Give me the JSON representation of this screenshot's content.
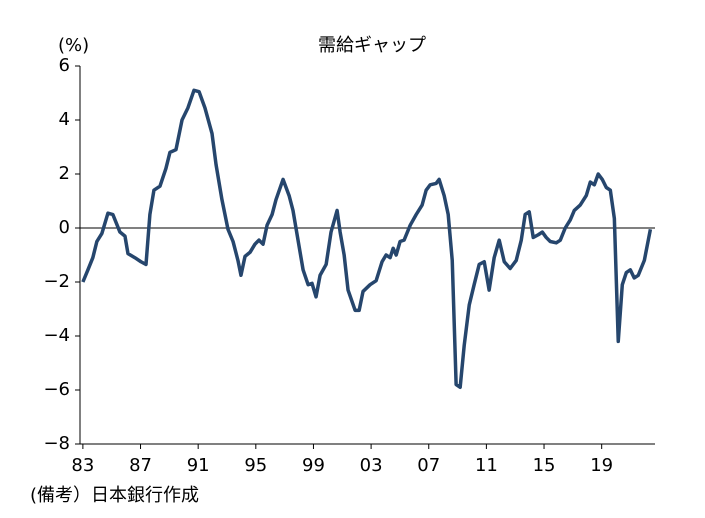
{
  "chart_data": {
    "type": "line",
    "title": "需給ギャップ",
    "y_unit": "(%)",
    "note": "(備考）日本銀行作成",
    "color": "#26466d",
    "x": [
      1983.0,
      1983.35,
      1983.69,
      1983.97,
      1984.32,
      1984.74,
      1985.08,
      1985.57,
      1985.92,
      1986.13,
      1986.61,
      1987.03,
      1987.38,
      1987.65,
      1987.93,
      1988.35,
      1988.76,
      1989.04,
      1989.46,
      1989.88,
      1990.29,
      1990.71,
      1991.06,
      1991.47,
      1991.96,
      1992.24,
      1992.65,
      1993.07,
      1993.42,
      1993.76,
      1993.97,
      1994.25,
      1994.6,
      1994.94,
      1995.22,
      1995.5,
      1995.78,
      1996.13,
      1996.4,
      1996.89,
      1997.31,
      1997.58,
      1997.93,
      1998.28,
      1998.63,
      1998.9,
      1999.18,
      1999.46,
      1999.88,
      2000.22,
      2000.64,
      2000.85,
      2001.13,
      2001.4,
      2001.89,
      2002.17,
      2002.44,
      2002.93,
      2003.35,
      2003.76,
      2004.04,
      2004.32,
      2004.53,
      2004.74,
      2005.01,
      2005.29,
      2005.71,
      2006.13,
      2006.54,
      2006.82,
      2007.1,
      2007.51,
      2007.72,
      2008.07,
      2008.35,
      2008.63,
      2008.9,
      2009.18,
      2009.46,
      2009.81,
      2010.15,
      2010.5,
      2010.85,
      2011.19,
      2011.54,
      2011.89,
      2012.24,
      2012.65,
      2013.07,
      2013.42,
      2013.69,
      2013.97,
      2014.25,
      2014.6,
      2014.88,
      2015.15,
      2015.43,
      2015.85,
      2016.13,
      2016.47,
      2016.82,
      2017.1,
      2017.51,
      2017.93,
      2018.21,
      2018.49,
      2018.76,
      2019.04,
      2019.32,
      2019.6,
      2019.88,
      2020.15,
      2020.43,
      2020.71,
      2020.99,
      2021.26,
      2021.54,
      2021.96,
      2022.38
    ],
    "values": [
      -2.0,
      -1.55,
      -1.1,
      -0.5,
      -0.2,
      0.55,
      0.5,
      -0.15,
      -0.3,
      -0.95,
      -1.1,
      -1.25,
      -1.35,
      0.5,
      1.4,
      1.55,
      2.2,
      2.8,
      2.9,
      4.0,
      4.45,
      5.1,
      5.05,
      4.45,
      3.5,
      2.35,
      1.05,
      -0.05,
      -0.5,
      -1.2,
      -1.75,
      -1.05,
      -0.9,
      -0.6,
      -0.45,
      -0.6,
      0.1,
      0.5,
      1.05,
      1.8,
      1.2,
      0.65,
      -0.45,
      -1.55,
      -2.1,
      -2.05,
      -2.55,
      -1.75,
      -1.35,
      -0.15,
      0.65,
      -0.15,
      -1.0,
      -2.3,
      -3.05,
      -3.05,
      -2.35,
      -2.1,
      -1.95,
      -1.25,
      -1.0,
      -1.1,
      -0.75,
      -1.0,
      -0.5,
      -0.45,
      0.1,
      0.5,
      0.85,
      1.4,
      1.6,
      1.65,
      1.8,
      1.2,
      0.5,
      -1.2,
      -5.8,
      -5.9,
      -4.35,
      -2.85,
      -2.1,
      -1.35,
      -1.25,
      -2.3,
      -1.1,
      -0.45,
      -1.25,
      -1.5,
      -1.2,
      -0.45,
      0.5,
      0.6,
      -0.35,
      -0.25,
      -0.15,
      -0.35,
      -0.5,
      -0.55,
      -0.45,
      0.0,
      0.3,
      0.65,
      0.85,
      1.2,
      1.7,
      1.6,
      2.0,
      1.8,
      1.5,
      1.4,
      0.35,
      -4.2,
      -2.1,
      -1.65,
      -1.55,
      -1.85,
      -1.75,
      -1.2,
      -0.05
    ],
    "xlim": [
      1982.8,
      2022.7
    ],
    "ylim": [
      -8,
      6
    ],
    "xticks": [
      {
        "value": 1983,
        "label": "83"
      },
      {
        "value": 1987,
        "label": "87"
      },
      {
        "value": 1991,
        "label": "91"
      },
      {
        "value": 1995,
        "label": "95"
      },
      {
        "value": 1999,
        "label": "99"
      },
      {
        "value": 2003,
        "label": "03"
      },
      {
        "value": 2007,
        "label": "07"
      },
      {
        "value": 2011,
        "label": "11"
      },
      {
        "value": 2015,
        "label": "15"
      },
      {
        "value": 2019,
        "label": "19"
      }
    ],
    "yticks": [
      {
        "value": -8,
        "label": "−8"
      },
      {
        "value": -6,
        "label": "−6"
      },
      {
        "value": -4,
        "label": "−4"
      },
      {
        "value": -2,
        "label": "−2"
      },
      0,
      2,
      4,
      6
    ]
  }
}
